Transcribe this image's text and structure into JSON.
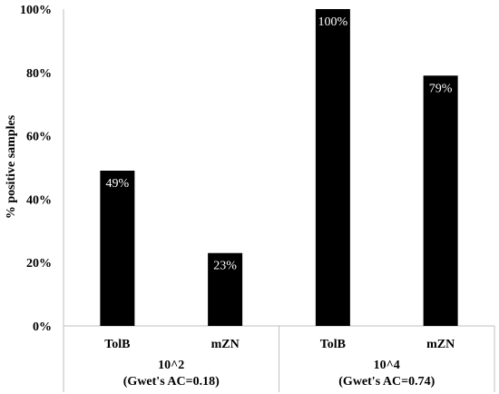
{
  "chart_data": {
    "type": "bar",
    "ylabel": "% positive samples",
    "ylim": [
      0,
      100
    ],
    "yticks": [
      0,
      20,
      40,
      60,
      80,
      100
    ],
    "ytick_labels": [
      "0%",
      "20%",
      "40%",
      "60%",
      "80%",
      "100%"
    ],
    "grid": false,
    "bar_color": "#000000",
    "groups": [
      {
        "label_line1": "10^2",
        "label_line2": "(Gwet's AC=0.18)",
        "categories": [
          "TolB",
          "mZN"
        ],
        "values": [
          49,
          23
        ],
        "data_labels": [
          "49%",
          "23%"
        ]
      },
      {
        "label_line1": "10^4",
        "label_line2": "(Gwet's AC=0.74)",
        "categories": [
          "TolB",
          "mZN"
        ],
        "values": [
          100,
          79
        ],
        "data_labels": [
          "100%",
          "79%"
        ]
      }
    ]
  }
}
